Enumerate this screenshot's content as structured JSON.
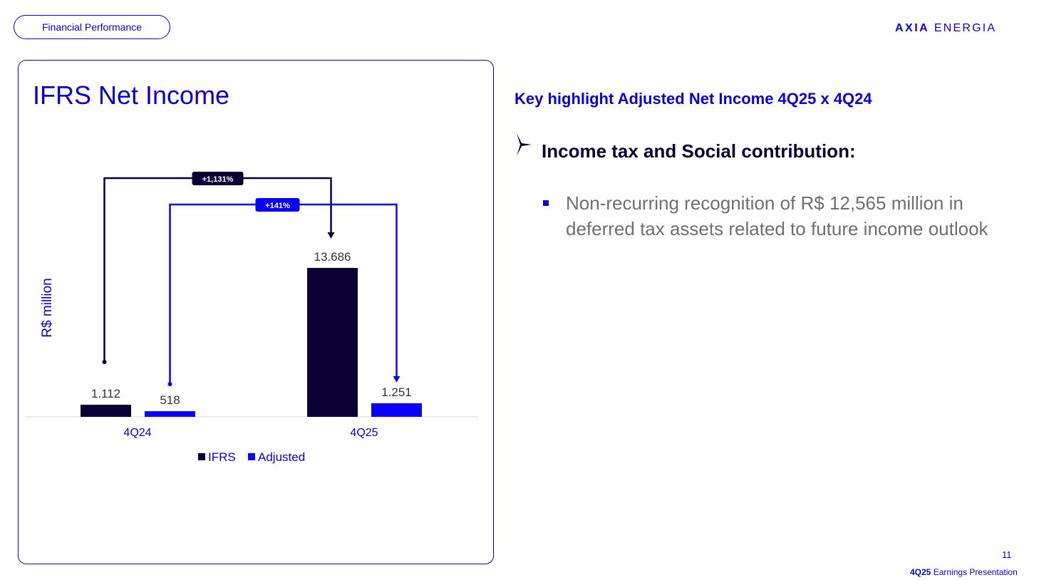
{
  "header": {
    "section_pill": "Financial Performance",
    "logo_bold": "AXIA",
    "logo_light": "ENERGIA"
  },
  "card": {
    "title": "IFRS Net Income"
  },
  "chart_data": {
    "type": "bar",
    "title": "IFRS Net Income",
    "ylabel": "R$ million",
    "categories": [
      "4Q24",
      "4Q25"
    ],
    "series": [
      {
        "name": "IFRS",
        "values": [
          1112,
          13686
        ],
        "labels": [
          "1.112",
          "13.686"
        ],
        "color": "#0b0033"
      },
      {
        "name": "Adjusted",
        "values": [
          518,
          1251
        ],
        "labels": [
          "518",
          "1.251"
        ],
        "color": "#0a00ff"
      }
    ],
    "annotations": [
      {
        "series": "IFRS",
        "text": "+1,131%",
        "color": "#0b0033"
      },
      {
        "series": "Adjusted",
        "text": "+141%",
        "color": "#0a00ff"
      }
    ],
    "legend_position": "bottom",
    "grid": false
  },
  "right": {
    "highlight_title": "Key highlight Adjusted Net Income 4Q25 x 4Q24",
    "subheading": "Income tax and Social contribution:",
    "bullet": "Non-recurring recognition of R$ 12,565 million in deferred tax assets related to future income outlook"
  },
  "footer": {
    "page_number": "11",
    "label_bold": "4Q25",
    "label_rest": "Earnings Presentation"
  },
  "colors": {
    "brand_blue": "#0a00d6",
    "navy": "#0b0033"
  }
}
